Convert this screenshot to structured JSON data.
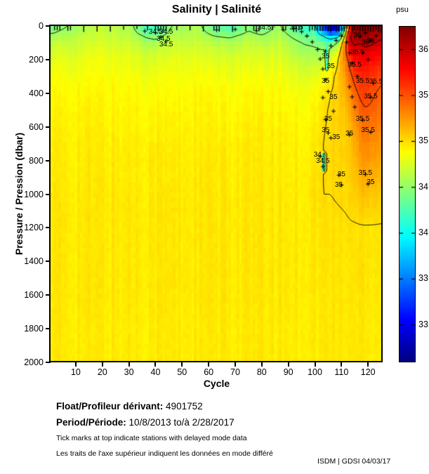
{
  "chart_data": {
    "type": "heatmap",
    "title": "Salinity | Salinité",
    "xlabel": "Cycle",
    "ylabel": "Pressure / Pression (dbar)",
    "x_range": [
      0.5,
      125.5
    ],
    "y_range": [
      0,
      2000
    ],
    "xticks": [
      10,
      20,
      30,
      40,
      50,
      60,
      70,
      80,
      90,
      100,
      110,
      120
    ],
    "yticks": [
      0,
      200,
      400,
      600,
      800,
      1000,
      1200,
      1400,
      1600,
      1800,
      2000
    ],
    "colorbar": {
      "unit_label": "psu",
      "range": [
        32.6,
        36.25
      ],
      "ticks": [
        36,
        35.5,
        35,
        34.5,
        34,
        33.5,
        33
      ],
      "colormap": "jet"
    },
    "x_cycles": [
      1,
      10,
      20,
      30,
      36,
      40,
      46,
      55,
      62,
      68,
      75,
      80,
      86,
      92,
      96,
      100,
      103,
      106,
      109,
      111,
      113,
      115,
      117,
      119,
      122,
      125
    ],
    "y_pressure": [
      0,
      30,
      60,
      100,
      150,
      200,
      300,
      400,
      500,
      600,
      700,
      800,
      900,
      1000,
      1200,
      1400,
      1600,
      1800,
      2000
    ],
    "values": [
      [
        34.4,
        34.55,
        34.65,
        34.6,
        34.25,
        34.15,
        34.5,
        34.6,
        34.3,
        34.2,
        34.45,
        34.3,
        34.55,
        34.3,
        34.15,
        34.1,
        33.2,
        32.8,
        32.9,
        34.0,
        35.6,
        36.1,
        36.2,
        36.25,
        36.2,
        36.2
      ],
      [
        34.45,
        34.6,
        34.68,
        34.62,
        34.32,
        34.22,
        34.55,
        34.62,
        34.38,
        34.32,
        34.5,
        34.42,
        34.58,
        34.38,
        34.25,
        34.2,
        33.5,
        33.1,
        33.3,
        34.5,
        35.8,
        36.15,
        36.2,
        36.22,
        36.15,
        36.12
      ],
      [
        34.55,
        34.65,
        34.7,
        34.66,
        34.48,
        34.42,
        34.6,
        34.65,
        34.5,
        34.46,
        34.58,
        34.52,
        34.62,
        34.46,
        34.36,
        34.32,
        34.0,
        33.7,
        33.9,
        34.9,
        35.95,
        36.18,
        36.12,
        36.18,
        36.1,
        36.05
      ],
      [
        34.65,
        34.7,
        34.74,
        34.7,
        34.6,
        34.57,
        34.68,
        34.7,
        34.62,
        34.6,
        34.66,
        34.62,
        34.68,
        34.56,
        34.48,
        34.45,
        34.38,
        34.32,
        34.55,
        35.25,
        35.95,
        36.05,
        36.0,
        36.08,
        36.02,
        35.95
      ],
      [
        34.72,
        34.75,
        34.79,
        34.76,
        34.7,
        34.68,
        34.74,
        34.76,
        34.7,
        34.68,
        34.72,
        34.7,
        34.74,
        34.62,
        34.58,
        34.55,
        34.52,
        34.58,
        34.88,
        35.38,
        35.75,
        35.92,
        35.88,
        35.94,
        35.88,
        35.82
      ],
      [
        34.78,
        34.8,
        34.83,
        34.8,
        34.76,
        34.75,
        34.79,
        34.8,
        34.76,
        34.75,
        34.78,
        34.76,
        34.78,
        34.7,
        34.66,
        34.64,
        34.62,
        34.75,
        35.02,
        35.32,
        35.58,
        35.78,
        35.78,
        35.84,
        35.78,
        35.72
      ],
      [
        34.85,
        34.86,
        34.87,
        34.86,
        34.84,
        34.83,
        34.85,
        34.86,
        34.84,
        34.83,
        34.85,
        34.84,
        34.85,
        34.8,
        34.78,
        34.8,
        34.86,
        34.94,
        35.08,
        35.22,
        35.42,
        35.58,
        35.64,
        35.68,
        35.62,
        35.55
      ],
      [
        34.89,
        34.9,
        34.9,
        34.9,
        34.88,
        34.88,
        34.89,
        34.9,
        34.88,
        34.88,
        34.89,
        34.89,
        34.89,
        34.87,
        34.85,
        34.88,
        34.94,
        35.0,
        35.06,
        35.15,
        35.28,
        35.44,
        35.54,
        35.58,
        35.52,
        35.45
      ],
      [
        34.91,
        34.92,
        34.92,
        34.92,
        34.91,
        34.91,
        34.91,
        34.92,
        34.91,
        34.91,
        34.91,
        34.91,
        34.91,
        34.9,
        34.89,
        34.91,
        34.97,
        35.02,
        35.05,
        35.1,
        35.2,
        35.33,
        35.44,
        35.49,
        35.46,
        35.4
      ],
      [
        34.93,
        34.93,
        34.93,
        34.93,
        34.92,
        34.92,
        34.93,
        34.93,
        34.92,
        34.92,
        34.93,
        34.93,
        34.93,
        34.92,
        34.91,
        34.93,
        34.99,
        35.02,
        35.04,
        35.07,
        35.13,
        35.23,
        35.34,
        35.41,
        35.38,
        35.32
      ],
      [
        34.94,
        34.94,
        34.94,
        34.94,
        34.94,
        34.94,
        34.94,
        34.94,
        34.94,
        34.94,
        34.94,
        34.94,
        34.94,
        34.93,
        34.93,
        34.95,
        35.0,
        35.02,
        35.03,
        35.05,
        35.09,
        35.17,
        35.27,
        35.33,
        35.3,
        35.26
      ],
      [
        34.95,
        34.95,
        34.95,
        34.95,
        34.95,
        34.95,
        34.95,
        34.95,
        34.95,
        34.95,
        34.95,
        34.95,
        34.95,
        34.94,
        34.94,
        34.97,
        35.0,
        35.01,
        35.02,
        35.04,
        35.07,
        35.13,
        35.21,
        35.27,
        35.24,
        35.2
      ],
      [
        34.95,
        34.95,
        34.96,
        34.95,
        34.95,
        34.95,
        34.95,
        34.95,
        34.95,
        34.95,
        34.95,
        34.95,
        34.95,
        34.95,
        34.95,
        34.98,
        35.0,
        35.01,
        35.02,
        35.03,
        35.05,
        35.09,
        35.15,
        35.19,
        35.17,
        35.13
      ],
      [
        34.96,
        34.96,
        34.96,
        34.96,
        34.96,
        34.96,
        34.96,
        34.96,
        34.96,
        34.96,
        34.96,
        34.96,
        34.96,
        34.95,
        34.95,
        34.99,
        35.0,
        35.0,
        35.01,
        35.02,
        35.03,
        35.05,
        35.09,
        35.12,
        35.1,
        35.07
      ],
      [
        34.96,
        34.96,
        34.96,
        34.96,
        34.96,
        34.96,
        34.96,
        34.96,
        34.96,
        34.96,
        34.96,
        34.96,
        34.96,
        34.96,
        34.96,
        34.97,
        34.98,
        34.98,
        34.98,
        34.98,
        34.99,
        34.99,
        34.99,
        34.99,
        34.99,
        34.99
      ],
      [
        34.96,
        34.96,
        34.96,
        34.96,
        34.96,
        34.96,
        34.96,
        34.96,
        34.96,
        34.96,
        34.96,
        34.96,
        34.96,
        34.96,
        34.96,
        34.96,
        34.97,
        34.97,
        34.97,
        34.97,
        34.97,
        34.98,
        34.99,
        34.99,
        34.98,
        34.98
      ],
      [
        34.96,
        34.96,
        34.96,
        34.96,
        34.96,
        34.96,
        34.96,
        34.96,
        34.96,
        34.96,
        34.96,
        34.96,
        34.96,
        34.96,
        34.96,
        34.96,
        34.96,
        34.96,
        34.97,
        34.97,
        34.97,
        34.97,
        34.98,
        34.98,
        34.97,
        34.97
      ],
      [
        34.95,
        34.95,
        34.95,
        34.95,
        34.95,
        34.95,
        34.95,
        34.95,
        34.95,
        34.95,
        34.95,
        34.95,
        34.95,
        34.95,
        34.95,
        34.95,
        34.96,
        34.96,
        34.96,
        34.96,
        34.96,
        34.96,
        34.97,
        34.97,
        34.96,
        34.96
      ],
      [
        34.95,
        34.95,
        34.95,
        34.95,
        34.95,
        34.95,
        34.95,
        34.95,
        34.95,
        34.95,
        34.95,
        34.95,
        34.95,
        34.95,
        34.95,
        34.95,
        34.95,
        34.95,
        34.96,
        34.96,
        34.96,
        34.96,
        34.96,
        34.96,
        34.96,
        34.96
      ]
    ],
    "patches": [
      {
        "c0": 102.6,
        "c1": 103.8,
        "p0": 755,
        "p1": 865,
        "value": 34.3
      },
      {
        "c0": 104.0,
        "c1": 105.0,
        "p0": 90,
        "p1": 260,
        "value": 34.2
      }
    ],
    "contour_levels": [
      34,
      34.5,
      35,
      35.5,
      36
    ],
    "annotations": [
      {
        "c": 40,
        "p": 38,
        "t": "34.5"
      },
      {
        "c": 44,
        "p": 36,
        "t": "34.5"
      },
      {
        "c": 43,
        "p": 80,
        "t": "34.5"
      },
      {
        "c": 44,
        "p": 112,
        "t": "34.5"
      },
      {
        "c": 81,
        "p": 14,
        "t": "34.5"
      },
      {
        "c": 93,
        "p": 12,
        "t": "34.5"
      },
      {
        "c": 104,
        "p": 185,
        "t": "35"
      },
      {
        "c": 106,
        "p": 243,
        "t": "35"
      },
      {
        "c": 104,
        "p": 330,
        "t": "35"
      },
      {
        "c": 107,
        "p": 425,
        "t": "35"
      },
      {
        "c": 105,
        "p": 556,
        "t": "35"
      },
      {
        "c": 104,
        "p": 622,
        "t": "35"
      },
      {
        "c": 108,
        "p": 664,
        "t": "35"
      },
      {
        "c": 101,
        "p": 768,
        "t": "34"
      },
      {
        "c": 103,
        "p": 806,
        "t": "34.5"
      },
      {
        "c": 110,
        "p": 886,
        "t": "35"
      },
      {
        "c": 109,
        "p": 948,
        "t": "35"
      },
      {
        "c": 116,
        "p": 58,
        "t": "36"
      },
      {
        "c": 119,
        "p": 100,
        "t": "36"
      },
      {
        "c": 121,
        "p": 92,
        "t": "36"
      },
      {
        "c": 116,
        "p": 158,
        "t": "35.5"
      },
      {
        "c": 115,
        "p": 232,
        "t": "35.5"
      },
      {
        "c": 118,
        "p": 330,
        "t": "35.5"
      },
      {
        "c": 113,
        "p": 642,
        "t": "35"
      },
      {
        "c": 118,
        "p": 556,
        "t": "35.5"
      },
      {
        "c": 121,
        "p": 420,
        "t": "35.5"
      },
      {
        "c": 120,
        "p": 624,
        "t": "35.5"
      },
      {
        "c": 119,
        "p": 876,
        "t": "35.5"
      },
      {
        "c": 121,
        "p": 930,
        "t": "35"
      },
      {
        "c": 123,
        "p": 332,
        "t": "35.5"
      }
    ],
    "profile_markers": [
      [
        36,
        30
      ],
      [
        40,
        40
      ],
      [
        42,
        66
      ],
      [
        44,
        92
      ],
      [
        63,
        24
      ],
      [
        70,
        20
      ],
      [
        78,
        28
      ],
      [
        88,
        22
      ],
      [
        92,
        16
      ],
      [
        95,
        34
      ],
      [
        97,
        60
      ],
      [
        99,
        95
      ],
      [
        101,
        140
      ],
      [
        102,
        196
      ],
      [
        103,
        256
      ],
      [
        104,
        320
      ],
      [
        103,
        426
      ],
      [
        104,
        556
      ],
      [
        105,
        636
      ],
      [
        106,
        666
      ],
      [
        102,
        776
      ],
      [
        103,
        836
      ],
      [
        109,
        886
      ],
      [
        110,
        946
      ],
      [
        104,
        150
      ],
      [
        106,
        118
      ],
      [
        108,
        86
      ],
      [
        110,
        60
      ],
      [
        112,
        96
      ],
      [
        113,
        160
      ],
      [
        114,
        222
      ],
      [
        113,
        362
      ],
      [
        114,
        422
      ],
      [
        115,
        482
      ],
      [
        113,
        646
      ],
      [
        116,
        300
      ],
      [
        118,
        560
      ],
      [
        119,
        882
      ],
      [
        120,
        940
      ],
      [
        121,
        424
      ],
      [
        117,
        64
      ],
      [
        119,
        40
      ],
      [
        121,
        88
      ],
      [
        123,
        58
      ],
      [
        118,
        160
      ],
      [
        120,
        200
      ],
      [
        122,
        340
      ],
      [
        121,
        632
      ],
      [
        107,
        506
      ],
      [
        105,
        390
      ]
    ],
    "delayed_mode_cycles": [
      2,
      3,
      4,
      7,
      8,
      13,
      18,
      23,
      28,
      33,
      37,
      40,
      41,
      42,
      43,
      44,
      48,
      53,
      58,
      62,
      63,
      64,
      69,
      74,
      77,
      78,
      79,
      84,
      88,
      89,
      92,
      93,
      94,
      95,
      98,
      99,
      100,
      101,
      102,
      103,
      104,
      105,
      106,
      107,
      108,
      109,
      110,
      111,
      112,
      113,
      114,
      115,
      116,
      117,
      118,
      119,
      120,
      121,
      122,
      123,
      124,
      125
    ]
  },
  "footer": {
    "float_label": "Float/Profileur dérivant:",
    "float_value": "4901752",
    "period_label": "Period/Période:",
    "period_value": "10/8/2013  to/à  2/28/2017",
    "note_en": "Tick marks at top indicate stations with delayed mode data",
    "note_fr": "Les traits de l'axe supérieur indiquent les données en mode différé",
    "credit": "ISDM | GDSI  04/03/17"
  }
}
